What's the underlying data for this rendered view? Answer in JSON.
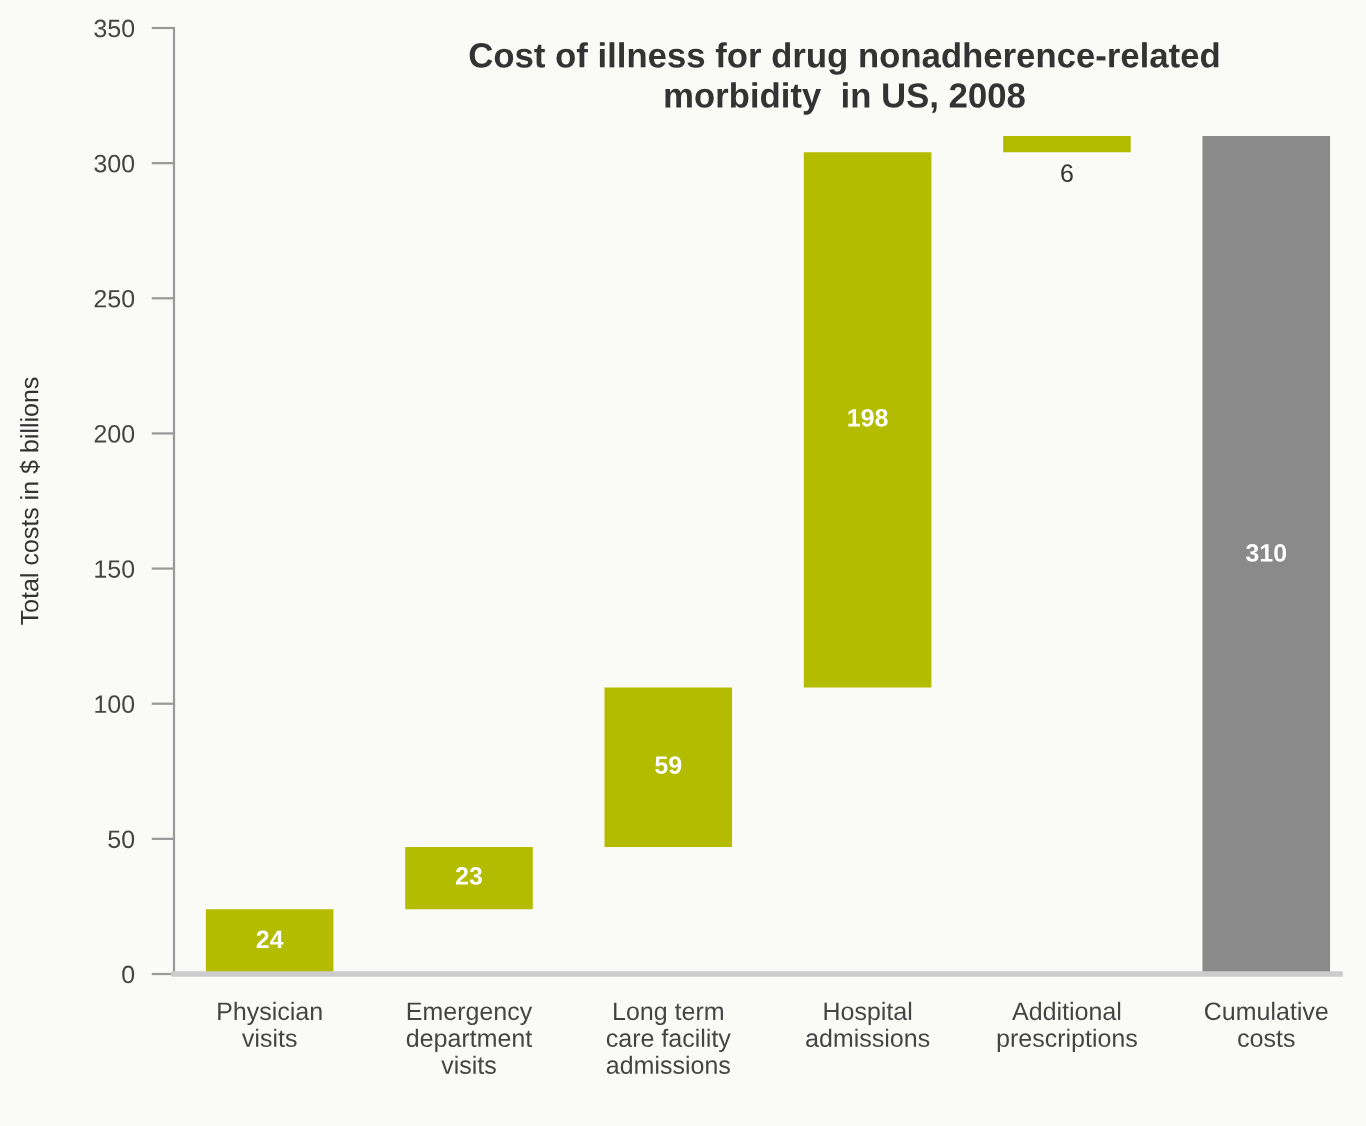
{
  "chart_data": {
    "type": "bar",
    "title": "Cost of illness for drug nonadherence-related\nmorbidity  in US, 2008",
    "ylabel": "Total costs in $ billions",
    "categories": [
      "Physician\nvisits",
      "Emergency\ndepartment\nvisits",
      "Long term\ncare facility\nadmissions",
      "Hospital\nadmissions",
      "Additional\nprescriptions",
      "Cumulative\ncosts"
    ],
    "values": [
      24,
      23,
      59,
      198,
      6,
      310
    ],
    "base": [
      0,
      24,
      47,
      106,
      304,
      0
    ],
    "colors": [
      "#b4bc00",
      "#b4bc00",
      "#b4bc00",
      "#b4bc00",
      "#b4bc00",
      "#8a8a8a"
    ],
    "ylim": [
      0,
      350
    ],
    "yticks": [
      0,
      50,
      100,
      150,
      200,
      250,
      300,
      350
    ],
    "data_labels": true,
    "grid": false,
    "legend": false
  }
}
